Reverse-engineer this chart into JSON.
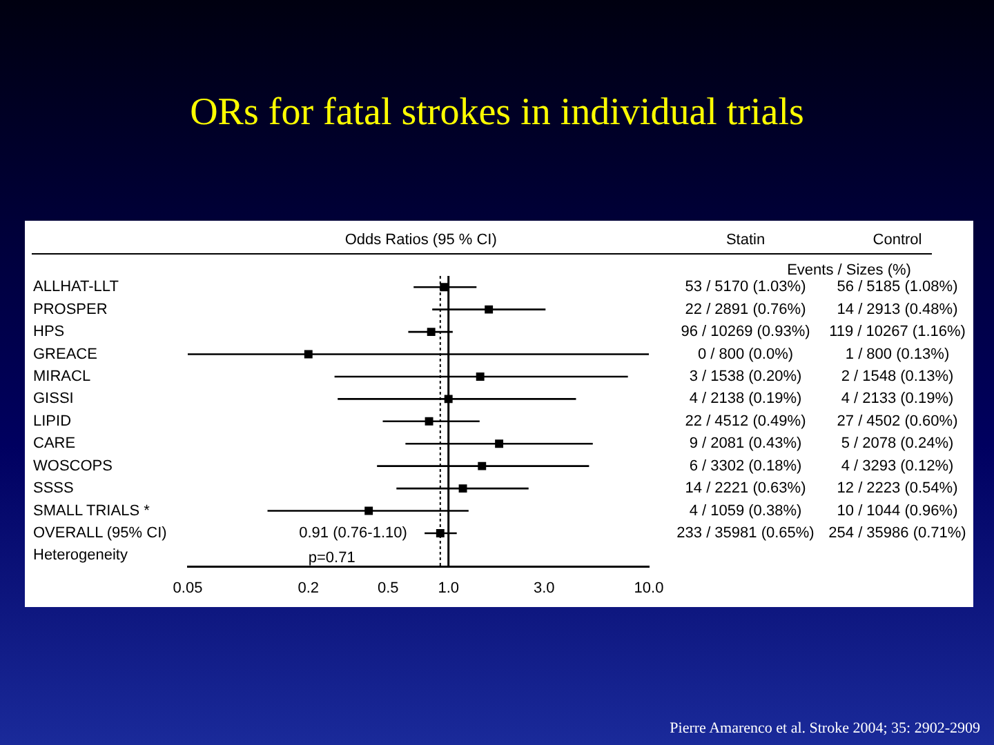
{
  "chart_data": {
    "type": "scatter",
    "orientation": "horizontal",
    "title": "ORs for fatal strokes in individual trials",
    "xlabel": "Odds Ratios (95 % CI)",
    "categories": [
      "ALLHAT-LLT",
      "PROSPER",
      "HPS",
      "GREACE",
      "MIRACL",
      "GISSI",
      "LIPID",
      "CARE",
      "WOSCOPS",
      "SSSS",
      "SMALL TRIALS *",
      "OVERALL (95% CI)",
      "Heterogeneity"
    ],
    "values": [
      0.95,
      1.59,
      0.82,
      0.2,
      1.44,
      1.0,
      0.8,
      1.79,
      1.47,
      1.18,
      0.4,
      0.91,
      null
    ],
    "errors": [
      [
        0.67,
        1.38
      ],
      [
        0.83,
        3.05
      ],
      [
        0.63,
        1.05
      ],
      [
        0.05,
        10.0
      ],
      [
        0.27,
        7.86
      ],
      [
        0.28,
        4.33
      ],
      [
        0.47,
        1.43
      ],
      [
        0.61,
        5.25
      ],
      [
        0.44,
        5.03
      ],
      [
        0.55,
        2.51
      ],
      [
        0.125,
        1.26
      ],
      [
        0.76,
        1.1
      ],
      null
    ],
    "color": "#000000",
    "marker": "square",
    "log": "x",
    "grid": false,
    "legend": false,
    "xlim": [
      0.05,
      10.0
    ],
    "xticks": [
      {
        "value": 0.05,
        "label": "0.05"
      },
      {
        "value": 0.2,
        "label": "0.2"
      },
      {
        "value": 0.5,
        "label": "0.5"
      },
      {
        "value": 1,
        "label": "1.0"
      },
      {
        "value": 3,
        "label": "3.0"
      },
      {
        "value": 10,
        "label": "10.0"
      }
    ],
    "ref_lines": [
      {
        "axis": "x",
        "value": 1,
        "line_style": "solid"
      },
      {
        "axis": "x",
        "value": 0.91,
        "line_style": "dotted"
      }
    ],
    "annotations": [
      "Statin",
      "Control",
      "Events / Sizes (%)",
      "p=0.71",
      "Pierre Amarenco et al. Stroke 2004; 35: 2902-2909",
      {
        "text": "0.91 (0.76-1.10)",
        "x": 0.91,
        "y": "OVERALL (95% CI)"
      },
      "53 / 5170 (1.03%)",
      "56 / 5185 (1.08%)",
      "22 / 2891 (0.76%)",
      "14 / 2913 (0.48%)",
      "96 / 10269 (0.93%)",
      "119 / 10267 (1.16%)",
      "0 / 800 (0.0%)",
      "1 / 800 (0.13%)",
      "3 / 1538 (0.20%)",
      "2 / 1548 (0.13%)",
      "4 / 2138 (0.19%)",
      "4 / 2133 (0.19%)",
      "22 / 4512 (0.49%)",
      "27 / 4502 (0.60%)",
      "9 / 2081 (0.43%)",
      "5 / 2078 (0.24%)",
      "6 / 3302 (0.18%)",
      "4 / 3293 (0.12%)",
      "14 / 2221 (0.63%)",
      "12 / 2223 (0.54%)",
      "4 / 1059 (0.38%)",
      "10 / 1044 (0.96%)",
      "233 / 35981 (0.65%)",
      "254 / 35986 (0.71%)"
    ]
  }
}
